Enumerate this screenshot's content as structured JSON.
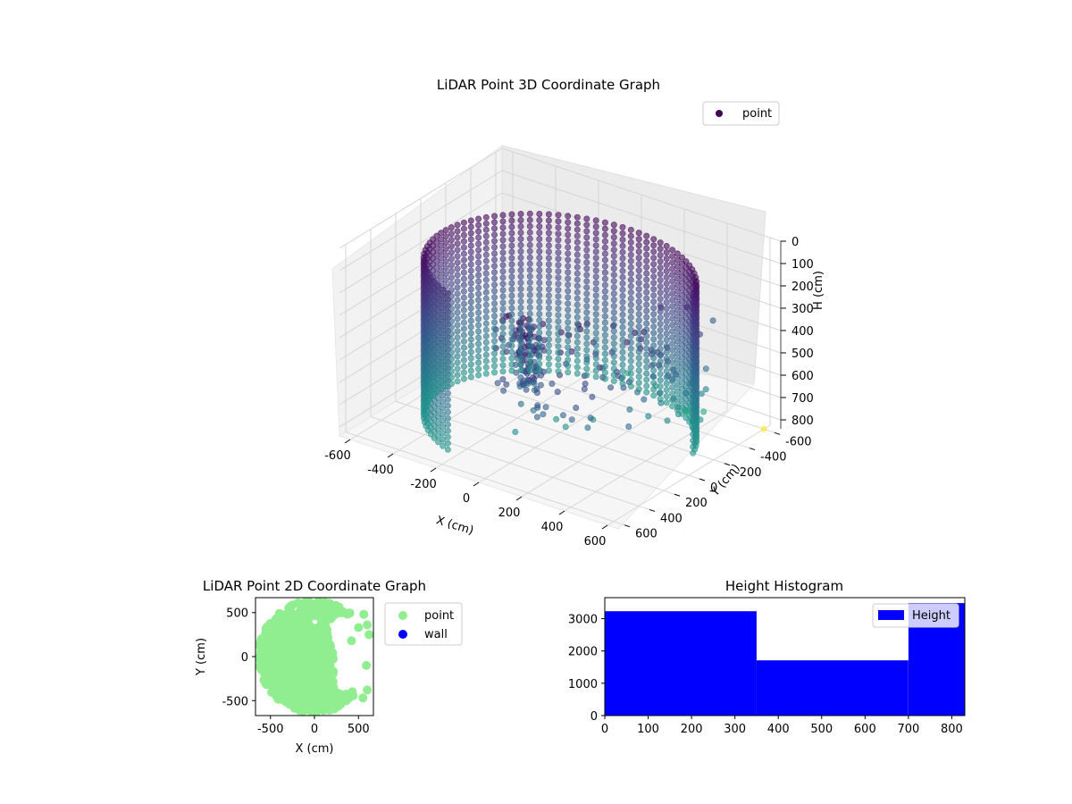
{
  "chart_data": [
    {
      "type": "scatter",
      "subtype": "3d",
      "title": "LiDAR Point 3D Coordinate Graph",
      "xlabel": "X (cm)",
      "ylabel": "Y (cm)",
      "zlabel": "H (cm)",
      "xticks": [
        "-600",
        "-400",
        "-200",
        "0",
        "200",
        "400",
        "600"
      ],
      "yticks": [
        "-600",
        "-400",
        "-200",
        "0",
        "200",
        "400",
        "600"
      ],
      "zticks": [
        "0",
        "100",
        "200",
        "300",
        "400",
        "500",
        "600",
        "700",
        "800"
      ],
      "xlim": [
        -650,
        650
      ],
      "ylim": [
        -650,
        650
      ],
      "zlim": [
        0,
        840
      ],
      "z_axis_inverted": true,
      "grid": true,
      "legend": {
        "position": "top-right",
        "entries": [
          "point"
        ]
      },
      "colormap": "viridis",
      "series": [
        {
          "name": "point",
          "wall": {
            "radius": 550,
            "arc_degrees": [
              115,
              345
            ],
            "height_range": [
              120,
              820
            ]
          },
          "corner_cluster": {
            "x": 180,
            "y": 560,
            "h_range": [
              100,
              380
            ]
          },
          "outliers": [
            {
              "x": 560,
              "y": 420,
              "h": 250
            },
            {
              "x": 620,
              "y": 300,
              "h": 330
            },
            {
              "x": 500,
              "y": -200,
              "h": 700
            },
            {
              "x": 450,
              "y": -350,
              "h": 760
            },
            {
              "x": 300,
              "y": -500,
              "h": 820
            },
            {
              "x": 640,
              "y": 100,
              "h": 500
            },
            {
              "x": 640,
              "y": -50,
              "h": 560
            },
            {
              "x": 600,
              "y": -600,
              "h": 840
            }
          ]
        }
      ]
    },
    {
      "type": "scatter",
      "title": "LiDAR Point 2D Coordinate Graph",
      "xlabel": "X (cm)",
      "ylabel": "Y (cm)",
      "xticks": [
        "-500",
        "0",
        "500"
      ],
      "yticks": [
        "-500",
        "0",
        "500"
      ],
      "xlim": [
        -670,
        670
      ],
      "ylim": [
        -670,
        670
      ],
      "legend": {
        "position": "outside-right",
        "entries": [
          "point",
          "wall"
        ]
      },
      "series": [
        {
          "name": "point",
          "color": "#90ee90"
        },
        {
          "name": "wall",
          "color": "#0000ff"
        }
      ]
    },
    {
      "type": "bar",
      "subtype": "histogram",
      "title": "Height Histogram",
      "xticks": [
        "0",
        "100",
        "200",
        "300",
        "400",
        "500",
        "600",
        "700",
        "800"
      ],
      "yticks": [
        "0",
        "1000",
        "2000",
        "3000"
      ],
      "xlim": [
        0,
        830
      ],
      "ylim": [
        0,
        3650
      ],
      "legend": {
        "position": "top-right",
        "entries": [
          "Height"
        ]
      },
      "series": [
        {
          "name": "Height",
          "color": "#0000ff",
          "bins": [
            {
              "x0": 0,
              "x1": 350,
              "count": 3230
            },
            {
              "x0": 350,
              "x1": 700,
              "count": 1710
            },
            {
              "x0": 700,
              "x1": 830,
              "count": 3480
            }
          ]
        }
      ]
    }
  ]
}
